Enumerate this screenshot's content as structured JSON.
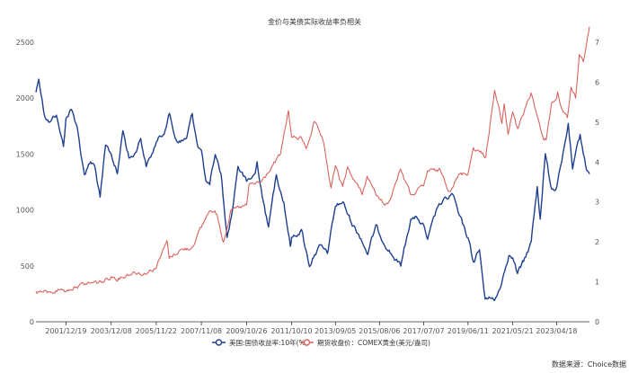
{
  "chart_data": {
    "type": "line",
    "title": "金价与美债实际收益率负相关",
    "source": "数据来源：Choice数据",
    "x_ticks": [
      "2001/12/19",
      "2003/12/08",
      "2005/11/22",
      "2007/11/08",
      "2009/10/26",
      "2011/10/10",
      "2013/09/05",
      "2015/08/06",
      "2017/07/07",
      "2019/06/11",
      "2021/05/21",
      "2023/04/18"
    ],
    "x_range": [
      "2000/08/30",
      "2024/09/20"
    ],
    "y_left": {
      "ticks": [
        "0",
        "500",
        "1000",
        "1500",
        "2000",
        "2500"
      ],
      "range": [
        0,
        2500
      ]
    },
    "y_right": {
      "ticks": [
        "0",
        "1",
        "2",
        "3",
        "4",
        "5",
        "6",
        "7"
      ],
      "range": [
        0,
        7
      ]
    },
    "series": [
      {
        "name": "美国:国债收益率:10年(%)",
        "axis": "right",
        "color": "#1f3f8f",
        "points": [
          [
            "2000/08/30",
            5.75
          ],
          [
            "2000/10/15",
            6.1
          ],
          [
            "2001/01/10",
            5.2
          ],
          [
            "2001/04/10",
            5.0
          ],
          [
            "2001/07/20",
            5.2
          ],
          [
            "2001/09/10",
            4.8
          ],
          [
            "2001/11/10",
            4.4
          ],
          [
            "2001/12/19",
            5.1
          ],
          [
            "2002/03/15",
            5.3
          ],
          [
            "2002/06/15",
            4.9
          ],
          [
            "2002/08/15",
            4.2
          ],
          [
            "2002/10/10",
            3.7
          ],
          [
            "2003/01/15",
            4.0
          ],
          [
            "2003/03/20",
            3.9
          ],
          [
            "2003/06/15",
            3.1
          ],
          [
            "2003/09/10",
            4.4
          ],
          [
            "2003/12/08",
            4.2
          ],
          [
            "2004/03/15",
            3.7
          ],
          [
            "2004/06/10",
            4.8
          ],
          [
            "2004/09/15",
            4.1
          ],
          [
            "2004/12/10",
            4.2
          ],
          [
            "2005/03/20",
            4.6
          ],
          [
            "2005/06/15",
            3.9
          ],
          [
            "2005/09/15",
            4.2
          ],
          [
            "2005/11/22",
            4.5
          ],
          [
            "2006/03/10",
            4.7
          ],
          [
            "2006/06/20",
            5.2
          ],
          [
            "2006/09/20",
            4.6
          ],
          [
            "2006/12/10",
            4.5
          ],
          [
            "2007/03/20",
            4.6
          ],
          [
            "2007/06/15",
            5.2
          ],
          [
            "2007/09/15",
            4.4
          ],
          [
            "2007/11/08",
            4.3
          ],
          [
            "2008/01/20",
            3.5
          ],
          [
            "2008/03/20",
            3.4
          ],
          [
            "2008/06/15",
            4.2
          ],
          [
            "2008/09/15",
            3.7
          ],
          [
            "2008/12/20",
            2.1
          ],
          [
            "2009/03/15",
            2.8
          ],
          [
            "2009/06/10",
            3.9
          ],
          [
            "2009/10/26",
            3.5
          ],
          [
            "2010/03/10",
            3.7
          ],
          [
            "2010/04/10",
            4.0
          ],
          [
            "2010/08/20",
            2.7
          ],
          [
            "2010/10/10",
            2.4
          ],
          [
            "2011/02/10",
            3.7
          ],
          [
            "2011/06/10",
            3.0
          ],
          [
            "2011/09/20",
            1.9
          ],
          [
            "2011/10/10",
            2.1
          ],
          [
            "2012/03/15",
            2.3
          ],
          [
            "2012/07/20",
            1.4
          ],
          [
            "2012/10/10",
            1.7
          ],
          [
            "2013/01/10",
            1.9
          ],
          [
            "2013/05/01",
            1.7
          ],
          [
            "2013/09/05",
            2.9
          ],
          [
            "2013/12/31",
            3.0
          ],
          [
            "2014/05/15",
            2.5
          ],
          [
            "2014/10/15",
            2.1
          ],
          [
            "2015/01/30",
            1.7
          ],
          [
            "2015/06/10",
            2.4
          ],
          [
            "2015/08/06",
            2.2
          ],
          [
            "2016/02/10",
            1.7
          ],
          [
            "2016/07/08",
            1.4
          ],
          [
            "2016/12/15",
            2.6
          ],
          [
            "2017/03/15",
            2.6
          ],
          [
            "2017/07/07",
            2.4
          ],
          [
            "2017/09/08",
            2.05
          ],
          [
            "2018/02/20",
            2.9
          ],
          [
            "2018/10/10",
            3.2
          ],
          [
            "2019/01/10",
            2.7
          ],
          [
            "2019/06/11",
            2.1
          ],
          [
            "2019/09/05",
            1.5
          ],
          [
            "2019/12/10",
            1.8
          ],
          [
            "2020/03/09",
            0.55
          ],
          [
            "2020/05/10",
            0.65
          ],
          [
            "2020/08/05",
            0.52
          ],
          [
            "2020/11/10",
            0.9
          ],
          [
            "2021/03/20",
            1.7
          ],
          [
            "2021/05/21",
            1.6
          ],
          [
            "2021/08/05",
            1.2
          ],
          [
            "2021/11/10",
            1.5
          ],
          [
            "2022/03/10",
            2.0
          ],
          [
            "2022/06/14",
            3.4
          ],
          [
            "2022/08/01",
            2.6
          ],
          [
            "2022/10/20",
            4.2
          ],
          [
            "2023/01/15",
            3.4
          ],
          [
            "2023/04/06",
            3.3
          ],
          [
            "2023/07/10",
            4.0
          ],
          [
            "2023/10/19",
            4.95
          ],
          [
            "2023/12/27",
            3.8
          ],
          [
            "2024/04/25",
            4.7
          ],
          [
            "2024/08/05",
            3.8
          ],
          [
            "2024/09/20",
            3.7
          ]
        ]
      },
      {
        "name": "期货收盘价：COMEX黄金(美元/盎司)",
        "axis": "left",
        "color": "#d9635f",
        "points": [
          [
            "2000/08/30",
            275
          ],
          [
            "2001/04/01",
            260
          ],
          [
            "2001/09/20",
            290
          ],
          [
            "2001/12/19",
            275
          ],
          [
            "2002/06/01",
            320
          ],
          [
            "2002/12/31",
            345
          ],
          [
            "2003/03/01",
            350
          ],
          [
            "2003/08/01",
            360
          ],
          [
            "2003/12/08",
            405
          ],
          [
            "2004/04/01",
            390
          ],
          [
            "2004/12/01",
            445
          ],
          [
            "2005/06/01",
            430
          ],
          [
            "2005/11/22",
            490
          ],
          [
            "2006/05/12",
            720
          ],
          [
            "2006/06/15",
            570
          ],
          [
            "2006/12/01",
            640
          ],
          [
            "2007/06/01",
            660
          ],
          [
            "2007/11/08",
            840
          ],
          [
            "2008/03/17",
            1000
          ],
          [
            "2008/07/15",
            960
          ],
          [
            "2008/10/24",
            720
          ],
          [
            "2009/02/20",
            995
          ],
          [
            "2009/10/26",
            1040
          ],
          [
            "2009/12/03",
            1220
          ],
          [
            "2010/06/20",
            1250
          ],
          [
            "2010/10/10",
            1340
          ],
          [
            "2011/04/20",
            1500
          ],
          [
            "2011/08/22",
            1890
          ],
          [
            "2011/10/10",
            1650
          ],
          [
            "2012/03/15",
            1640
          ],
          [
            "2012/05/30",
            1550
          ],
          [
            "2012/10/05",
            1790
          ],
          [
            "2013/02/15",
            1620
          ],
          [
            "2013/06/27",
            1200
          ],
          [
            "2013/09/05",
            1390
          ],
          [
            "2014/01/01",
            1200
          ],
          [
            "2014/03/15",
            1380
          ],
          [
            "2014/11/05",
            1140
          ],
          [
            "2015/01/22",
            1300
          ],
          [
            "2015/08/06",
            1085
          ],
          [
            "2015/12/17",
            1050
          ],
          [
            "2016/07/06",
            1370
          ],
          [
            "2016/12/15",
            1130
          ],
          [
            "2017/07/07",
            1210
          ],
          [
            "2017/09/08",
            1350
          ],
          [
            "2018/04/01",
            1350
          ],
          [
            "2018/08/16",
            1175
          ],
          [
            "2019/02/01",
            1320
          ],
          [
            "2019/06/11",
            1330
          ],
          [
            "2019/09/04",
            1560
          ],
          [
            "2020/03/19",
            1480
          ],
          [
            "2020/08/06",
            2070
          ],
          [
            "2020/11/30",
            1770
          ],
          [
            "2021/01/05",
            1950
          ],
          [
            "2021/03/08",
            1680
          ],
          [
            "2021/05/21",
            1880
          ],
          [
            "2021/08/09",
            1730
          ],
          [
            "2021/11/15",
            1870
          ],
          [
            "2022/03/08",
            2050
          ],
          [
            "2022/09/28",
            1625
          ],
          [
            "2022/11/03",
            1630
          ],
          [
            "2023/01/26",
            1950
          ],
          [
            "2023/04/18",
            2000
          ],
          [
            "2023/05/04",
            2060
          ],
          [
            "2023/06/30",
            1920
          ],
          [
            "2023/10/05",
            1820
          ],
          [
            "2023/12/04",
            2090
          ],
          [
            "2024/02/14",
            2000
          ],
          [
            "2024/04/12",
            2400
          ],
          [
            "2024/06/15",
            2330
          ],
          [
            "2024/08/20",
            2540
          ],
          [
            "2024/09/20",
            2640
          ]
        ]
      }
    ],
    "legend_position": "bottom-center",
    "grid": false
  }
}
